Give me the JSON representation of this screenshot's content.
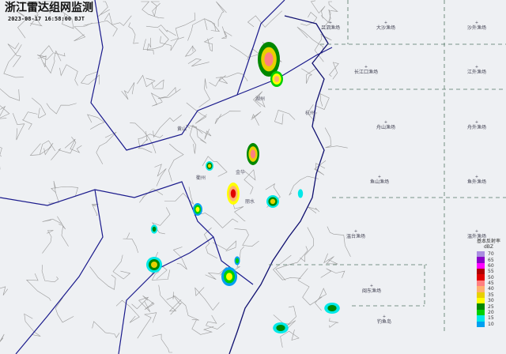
{
  "header": {
    "title": "浙江雷达组网监测",
    "timestamp": "2023-08-17 16:58:00 BJT"
  },
  "fishing_grounds": [
    "吕泗渔场",
    "大沙渔场",
    "沙外渔场",
    "长江口渔场",
    "江外渔场",
    "舟山渔场",
    "舟外渔场",
    "鱼山渔场",
    "鱼外渔场",
    "温台渔场",
    "温外渔场",
    "闽东渔场",
    "钓鱼岛"
  ],
  "cities": [
    "湖州",
    "杭州",
    "黄山",
    "衢州",
    "金华",
    "丽水"
  ],
  "legend": {
    "title": "基本反射率",
    "unit": "dBZ",
    "levels": [
      {
        "v": "70",
        "c": "#a98de0"
      },
      {
        "v": "65",
        "c": "#8a00c8"
      },
      {
        "v": "60",
        "c": "#ff00ff"
      },
      {
        "v": "55",
        "c": "#b00000"
      },
      {
        "v": "50",
        "c": "#e00000"
      },
      {
        "v": "45",
        "c": "#ff8080"
      },
      {
        "v": "40",
        "c": "#ffb070"
      },
      {
        "v": "35",
        "c": "#e8d000"
      },
      {
        "v": "30",
        "c": "#ffff00"
      },
      {
        "v": "25",
        "c": "#008800"
      },
      {
        "v": "20",
        "c": "#00d000"
      },
      {
        "v": "15",
        "c": "#00e8e8"
      },
      {
        "v": "10",
        "c": "#00a0f0"
      }
    ]
  },
  "colors": {
    "province_border": "#1a1a8c",
    "county_border": "#9a9a9a",
    "coastline": "#101070",
    "grid": "#557766"
  }
}
